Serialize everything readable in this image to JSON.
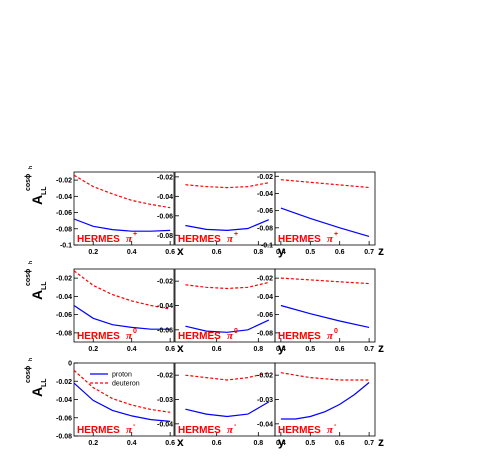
{
  "figure": {
    "experiment": "HERMES",
    "ylabel_main": "A",
    "ylabel_sub": "LL",
    "ylabel_sup": "cosϕ",
    "ylabel_sup_sub": "h",
    "legend": {
      "proton": "proton",
      "deuteron": "deuteron"
    },
    "colors": {
      "proton": "#0000ff",
      "deuteron": "#ff0000",
      "label": "#ff0000"
    }
  },
  "chart_data": [
    {
      "type": "line",
      "pion": "π",
      "charge": "+",
      "xlabel": "x",
      "xlim": [
        0.1,
        0.62
      ],
      "ylim": [
        -0.1,
        -0.01
      ],
      "xticks": [
        "0.2",
        "0.4",
        "0.6"
      ],
      "yticks": [
        "-0.02",
        "-0.04",
        "-0.06",
        "-0.08",
        "-0.1"
      ],
      "series": [
        {
          "name": "proton",
          "x": [
            0.1,
            0.2,
            0.3,
            0.4,
            0.5,
            0.6
          ],
          "y": [
            -0.068,
            -0.077,
            -0.081,
            -0.083,
            -0.083,
            -0.082
          ]
        },
        {
          "name": "deuteron",
          "x": [
            0.1,
            0.2,
            0.3,
            0.4,
            0.5,
            0.6
          ],
          "y": [
            -0.014,
            -0.028,
            -0.037,
            -0.045,
            -0.05,
            -0.054
          ]
        }
      ]
    },
    {
      "type": "line",
      "pion": "π",
      "charge": "+",
      "xlabel": "y",
      "xlim": [
        0.4,
        0.88
      ],
      "ylim": [
        -0.09,
        -0.015
      ],
      "xticks": [
        "0.6",
        "0.8"
      ],
      "yticks": [
        "-0.02",
        "-0.04",
        "-0.06",
        "-0.08"
      ],
      "series": [
        {
          "name": "proton",
          "x": [
            0.45,
            0.55,
            0.65,
            0.75,
            0.85
          ],
          "y": [
            -0.07,
            -0.074,
            -0.075,
            -0.073,
            -0.064
          ]
        },
        {
          "name": "deuteron",
          "x": [
            0.45,
            0.55,
            0.65,
            0.75,
            0.85
          ],
          "y": [
            -0.028,
            -0.03,
            -0.031,
            -0.03,
            -0.026
          ]
        }
      ]
    },
    {
      "type": "line",
      "pion": "π",
      "charge": "+",
      "xlabel": "z",
      "xlim": [
        0.38,
        0.72
      ],
      "ylim": [
        -0.1,
        -0.015
      ],
      "xticks": [
        "0.4",
        "0.5",
        "0.6",
        "0.7"
      ],
      "yticks": [
        "-0.02",
        "-0.04",
        "-0.06",
        "-0.08",
        "-0.1"
      ],
      "series": [
        {
          "name": "proton",
          "x": [
            0.4,
            0.5,
            0.6,
            0.7
          ],
          "y": [
            -0.057,
            -0.069,
            -0.08,
            -0.09
          ]
        },
        {
          "name": "deuteron",
          "x": [
            0.4,
            0.5,
            0.6,
            0.7
          ],
          "y": [
            -0.024,
            -0.027,
            -0.03,
            -0.033
          ]
        }
      ]
    },
    {
      "type": "line",
      "pion": "π",
      "charge": "0",
      "xlabel": "x",
      "xlim": [
        0.1,
        0.62
      ],
      "ylim": [
        -0.09,
        -0.01
      ],
      "xticks": [
        "0.2",
        "0.4",
        "0.6"
      ],
      "yticks": [
        "-0.02",
        "-0.04",
        "-0.06",
        "-0.08"
      ],
      "series": [
        {
          "name": "proton",
          "x": [
            0.1,
            0.2,
            0.3,
            0.4,
            0.5,
            0.6
          ],
          "y": [
            -0.05,
            -0.064,
            -0.071,
            -0.074,
            -0.076,
            -0.076
          ]
        },
        {
          "name": "deuteron",
          "x": [
            0.1,
            0.2,
            0.3,
            0.4,
            0.5,
            0.6
          ],
          "y": [
            -0.012,
            -0.028,
            -0.038,
            -0.045,
            -0.05,
            -0.054
          ]
        }
      ]
    },
    {
      "type": "line",
      "pion": "π",
      "charge": "0",
      "xlabel": "y",
      "xlim": [
        0.4,
        0.88
      ],
      "ylim": [
        -0.07,
        -0.01
      ],
      "xticks": [
        "0.6",
        "0.8"
      ],
      "yticks": [
        "-0.02",
        "-0.04",
        "-0.06"
      ],
      "series": [
        {
          "name": "proton",
          "x": [
            0.45,
            0.55,
            0.65,
            0.75,
            0.85
          ],
          "y": [
            -0.057,
            -0.061,
            -0.062,
            -0.06,
            -0.052
          ]
        },
        {
          "name": "deuteron",
          "x": [
            0.45,
            0.55,
            0.65,
            0.75,
            0.85
          ],
          "y": [
            -0.023,
            -0.025,
            -0.026,
            -0.025,
            -0.021
          ]
        }
      ]
    },
    {
      "type": "line",
      "pion": "π",
      "charge": "0",
      "xlabel": "z",
      "xlim": [
        0.38,
        0.72
      ],
      "ylim": [
        -0.09,
        -0.01
      ],
      "xticks": [
        "0.4",
        "0.5",
        "0.6",
        "0.7"
      ],
      "yticks": [
        "-0.02",
        "-0.04",
        "-0.06",
        "-0.08"
      ],
      "series": [
        {
          "name": "proton",
          "x": [
            0.4,
            0.5,
            0.6,
            0.7
          ],
          "y": [
            -0.05,
            -0.059,
            -0.067,
            -0.074
          ]
        },
        {
          "name": "deuteron",
          "x": [
            0.4,
            0.5,
            0.6,
            0.7
          ],
          "y": [
            -0.02,
            -0.022,
            -0.024,
            -0.026
          ]
        }
      ]
    },
    {
      "type": "line",
      "pion": "π",
      "charge": "-",
      "xlabel": "x",
      "xlim": [
        0.1,
        0.62
      ],
      "ylim": [
        -0.08,
        0
      ],
      "xticks": [
        "0.2",
        "0.4",
        "0.6"
      ],
      "yticks": [
        "0",
        "-0.02",
        "-0.04",
        "-0.06",
        "-0.08"
      ],
      "legend_position": "top-center",
      "series": [
        {
          "name": "proton",
          "x": [
            0.1,
            0.2,
            0.3,
            0.4,
            0.5,
            0.6
          ],
          "y": [
            -0.022,
            -0.041,
            -0.052,
            -0.058,
            -0.062,
            -0.064
          ]
        },
        {
          "name": "deuteron",
          "x": [
            0.1,
            0.2,
            0.3,
            0.4,
            0.5,
            0.6
          ],
          "y": [
            -0.008,
            -0.027,
            -0.039,
            -0.046,
            -0.051,
            -0.054
          ]
        }
      ]
    },
    {
      "type": "line",
      "pion": "π",
      "charge": "-",
      "xlabel": "y",
      "xlim": [
        0.4,
        0.88
      ],
      "ylim": [
        -0.045,
        -0.015
      ],
      "xticks": [
        "0.6",
        "0.8"
      ],
      "yticks": [
        "-0.02",
        "-0.03",
        "-0.04"
      ],
      "series": [
        {
          "name": "proton",
          "x": [
            0.45,
            0.55,
            0.65,
            0.75,
            0.85
          ],
          "y": [
            -0.034,
            -0.036,
            -0.037,
            -0.036,
            -0.031
          ]
        },
        {
          "name": "deuteron",
          "x": [
            0.45,
            0.55,
            0.65,
            0.75,
            0.85
          ],
          "y": [
            -0.02,
            -0.021,
            -0.022,
            -0.021,
            -0.019
          ]
        }
      ]
    },
    {
      "type": "line",
      "pion": "π",
      "charge": "-",
      "xlabel": "z",
      "xlim": [
        0.38,
        0.72
      ],
      "ylim": [
        -0.045,
        -0.015
      ],
      "xticks": [
        "0.4",
        "0.5",
        "0.6",
        "0.7"
      ],
      "yticks": [
        "-0.02",
        "-0.03",
        "-0.04"
      ],
      "series": [
        {
          "name": "proton",
          "x": [
            0.4,
            0.45,
            0.5,
            0.55,
            0.6,
            0.65,
            0.7
          ],
          "y": [
            -0.038,
            -0.038,
            -0.037,
            -0.035,
            -0.032,
            -0.028,
            -0.023
          ]
        },
        {
          "name": "deuteron",
          "x": [
            0.4,
            0.5,
            0.6,
            0.7
          ],
          "y": [
            -0.019,
            -0.021,
            -0.022,
            -0.022
          ]
        }
      ]
    }
  ]
}
